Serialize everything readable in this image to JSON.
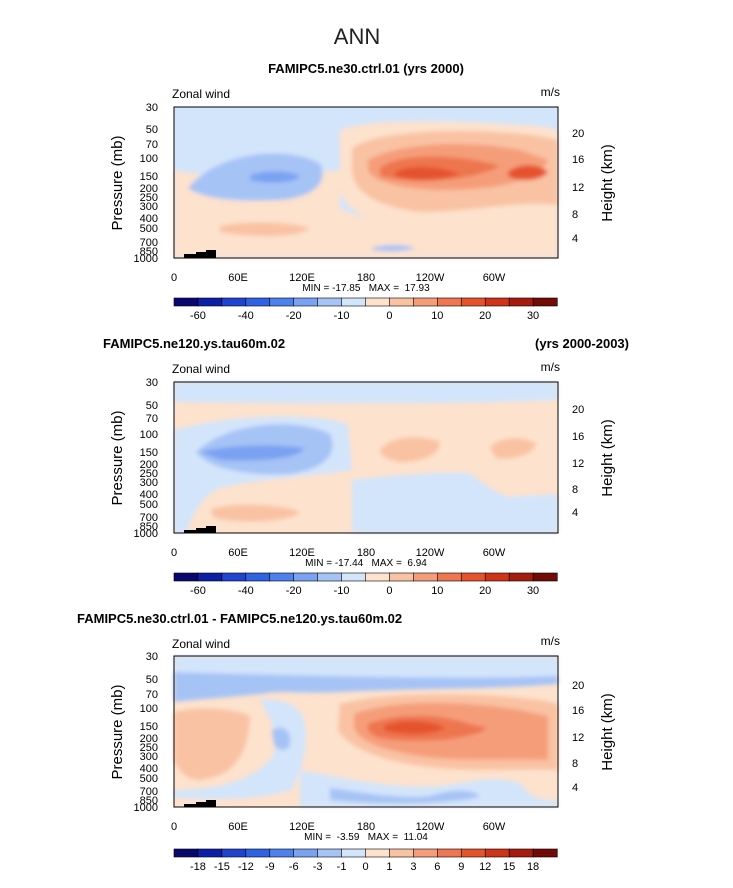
{
  "page_title": "ANN",
  "panels": [
    {
      "title": "FAMIPC5.ne30.ctrl.01 (yrs 2000)",
      "title_right": "",
      "left_label": "Zonal wind",
      "units": "m/s",
      "min_max": "MIN = -17.85   MAX =  17.93",
      "colorbar_ticks": [
        "-60",
        "-40",
        "-20",
        "-10",
        "0",
        "10",
        "20",
        "30"
      ],
      "colors": [
        "#08086f",
        "#0c1fa6",
        "#1f44cf",
        "#2e63e6",
        "#4d82ee",
        "#7aa2f2",
        "#a6c3f6",
        "#d3e5fb",
        "#fde2cd",
        "#f9c2a3",
        "#f59d79",
        "#ee7650",
        "#e5532d",
        "#cf3418",
        "#a61c0c",
        "#720a05"
      ]
    },
    {
      "title": "FAMIPC5.ne120.ys.tau60m.02",
      "title_right": "(yrs 2000-2003)",
      "left_label": "Zonal wind",
      "units": "m/s",
      "min_max": "MIN = -17.44   MAX =  6.94",
      "colorbar_ticks": [
        "-60",
        "-40",
        "-20",
        "-10",
        "0",
        "10",
        "20",
        "30"
      ],
      "colors": [
        "#08086f",
        "#0c1fa6",
        "#1f44cf",
        "#2e63e6",
        "#4d82ee",
        "#7aa2f2",
        "#a6c3f6",
        "#d3e5fb",
        "#fde2cd",
        "#f9c2a3",
        "#f59d79",
        "#ee7650",
        "#e5532d",
        "#cf3418",
        "#a61c0c",
        "#720a05"
      ]
    },
    {
      "title": "FAMIPC5.ne30.ctrl.01 - FAMIPC5.ne120.ys.tau60m.02",
      "title_right": "",
      "left_label": "Zonal wind",
      "units": "m/s",
      "min_max": "MIN =  -3.59   MAX =  11.04",
      "colorbar_ticks": [
        "-18",
        "-15",
        "-12",
        "-9",
        "-6",
        "-3",
        "-1",
        "0",
        "1",
        "3",
        "6",
        "9",
        "12",
        "15",
        "18"
      ],
      "colors": [
        "#08086f",
        "#0c1fa6",
        "#1f44cf",
        "#2e63e6",
        "#4d82ee",
        "#7aa2f2",
        "#a6c3f6",
        "#d3e5fb",
        "#fde2cd",
        "#f9c2a3",
        "#f59d79",
        "#ee7650",
        "#e5532d",
        "#cf3418",
        "#a61c0c",
        "#720a05"
      ]
    }
  ],
  "chart_data": [
    {
      "type": "heatmap",
      "title": "FAMIPC5.ne30.ctrl.01 (yrs 2000)",
      "variable": "Zonal wind",
      "units": "m/s",
      "xlabel": "",
      "ylabel": "Pressure (mb)",
      "y2label": "Height (km)",
      "x_ticks": [
        "0",
        "60E",
        "120E",
        "180",
        "120W",
        "60W"
      ],
      "y_ticks": [
        "30",
        "50",
        "70",
        "100",
        "150",
        "200",
        "250",
        "300",
        "400",
        "500",
        "700",
        "850",
        "1000"
      ],
      "y2_ticks": [
        "4",
        "8",
        "12",
        "16",
        "20"
      ],
      "levels": [
        -60,
        -50,
        -40,
        -30,
        -20,
        -15,
        -10,
        -5,
        0,
        5,
        10,
        15,
        20,
        25,
        30
      ],
      "colorbar_ticks": [
        -60,
        -40,
        -20,
        -10,
        0,
        10,
        20,
        30
      ],
      "min": -17.85,
      "max": 17.93
    },
    {
      "type": "heatmap",
      "title": "FAMIPC5.ne120.ys.tau60m.02 (yrs 2000-2003)",
      "variable": "Zonal wind",
      "units": "m/s",
      "xlabel": "",
      "ylabel": "Pressure (mb)",
      "y2label": "Height (km)",
      "x_ticks": [
        "0",
        "60E",
        "120E",
        "180",
        "120W",
        "60W"
      ],
      "y_ticks": [
        "30",
        "50",
        "70",
        "100",
        "150",
        "200",
        "250",
        "300",
        "400",
        "500",
        "700",
        "850",
        "1000"
      ],
      "y2_ticks": [
        "4",
        "8",
        "12",
        "16",
        "20"
      ],
      "levels": [
        -60,
        -50,
        -40,
        -30,
        -20,
        -15,
        -10,
        -5,
        0,
        5,
        10,
        15,
        20,
        25,
        30
      ],
      "colorbar_ticks": [
        -60,
        -40,
        -20,
        -10,
        0,
        10,
        20,
        30
      ],
      "min": -17.44,
      "max": 6.94
    },
    {
      "type": "heatmap",
      "title": "FAMIPC5.ne30.ctrl.01 - FAMIPC5.ne120.ys.tau60m.02",
      "variable": "Zonal wind",
      "units": "m/s",
      "xlabel": "",
      "ylabel": "Pressure (mb)",
      "y2label": "Height (km)",
      "x_ticks": [
        "0",
        "60E",
        "120E",
        "180",
        "120W",
        "60W"
      ],
      "y_ticks": [
        "30",
        "50",
        "70",
        "100",
        "150",
        "200",
        "250",
        "300",
        "400",
        "500",
        "700",
        "850",
        "1000"
      ],
      "y2_ticks": [
        "4",
        "8",
        "12",
        "16",
        "20"
      ],
      "levels": [
        -18,
        -15,
        -12,
        -9,
        -6,
        -3,
        -1,
        0,
        1,
        3,
        6,
        9,
        12,
        15,
        18
      ],
      "colorbar_ticks": [
        -18,
        -15,
        -12,
        -9,
        -6,
        -3,
        -1,
        0,
        1,
        3,
        6,
        9,
        12,
        15,
        18
      ],
      "min": -3.59,
      "max": 11.04
    }
  ]
}
